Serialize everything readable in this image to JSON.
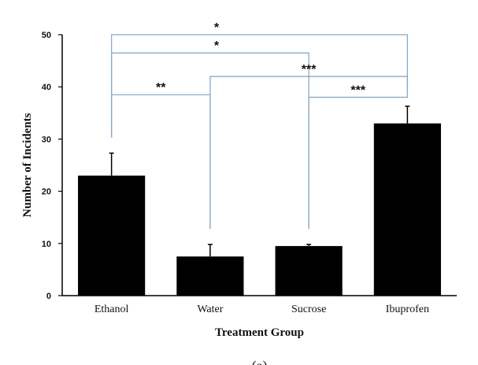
{
  "chart_data": {
    "type": "bar",
    "title": "",
    "xlabel": "Treatment Group",
    "ylabel": "Number of Incidents",
    "ylim": [
      0,
      50
    ],
    "yticks": [
      0,
      10,
      20,
      30,
      40,
      50
    ],
    "grid": false,
    "categories": [
      "Ethanol",
      "Water",
      "Sucrose",
      "Ibuprofen"
    ],
    "values": [
      23,
      7.5,
      9.5,
      33
    ],
    "errors": [
      4.3,
      2.3,
      0.3,
      3.3
    ],
    "bar_color": "#000000",
    "bracket_color": "#8fa9c4",
    "significance": [
      {
        "from": "Ethanol",
        "to": "Ibuprofen",
        "label": "*",
        "level": 50
      },
      {
        "from": "Ethanol",
        "to": "Sucrose",
        "label": "*",
        "level": 46.5
      },
      {
        "from": "Ethanol",
        "to": "Water",
        "label": "**",
        "level": 38.5
      },
      {
        "from": "Water",
        "to": "Ibuprofen",
        "label": "***",
        "level": 42
      },
      {
        "from": "Sucrose",
        "to": "Ibuprofen",
        "label": "***",
        "level": 38
      }
    ],
    "caption": "(a)"
  }
}
